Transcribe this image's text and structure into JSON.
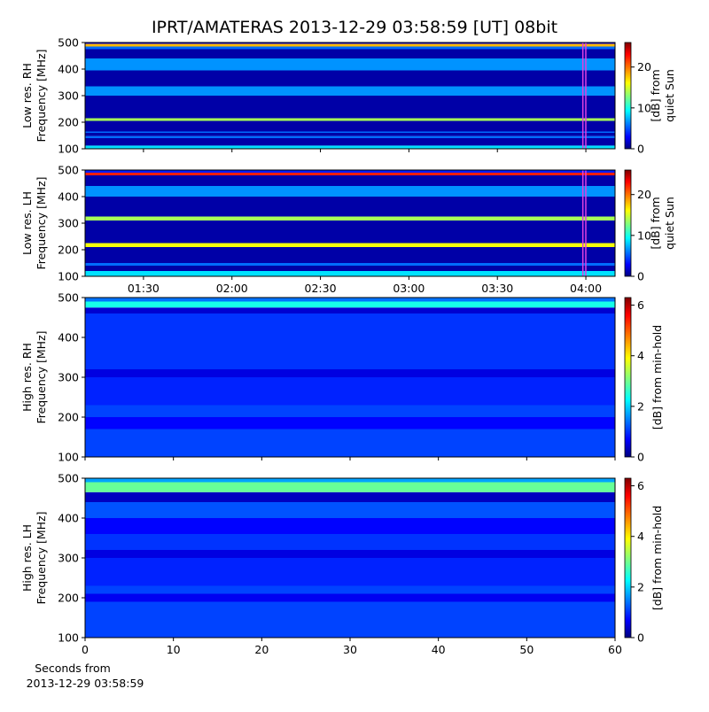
{
  "title": "IPRT/AMATERAS 2013-12-29 03:58:59 [UT]   08bit",
  "footnote": [
    "Seconds from",
    "2013-12-29 03:58:59"
  ],
  "chart_data": [
    {
      "type": "heatmap",
      "cmap": "jet",
      "ylabel": [
        "Low res. RH",
        "Frequency [MHz]"
      ],
      "xlim": [
        70.2,
        249.9
      ],
      "xticks": [
        90,
        120,
        150,
        180,
        210,
        240
      ],
      "xtick_labels": false,
      "ylim": [
        100,
        500
      ],
      "yticks": [
        100,
        200,
        300,
        400,
        500
      ],
      "y_edges": [
        100,
        112,
        140,
        148,
        160,
        165,
        205,
        215,
        300,
        335,
        395,
        440,
        475,
        485,
        495,
        500
      ],
      "values": [
        9,
        1,
        6,
        1,
        6,
        1,
        14,
        1,
        7,
        1,
        7,
        1,
        6,
        18,
        3
      ],
      "markers": [
        238.98,
        239.98
      ],
      "marker_color": "#e040e0",
      "colorbar": {
        "label": [
          "[dB] from",
          "quiet Sun"
        ],
        "lim": [
          0,
          26
        ],
        "ticks": [
          0,
          10,
          20
        ]
      }
    },
    {
      "type": "heatmap",
      "cmap": "jet",
      "ylabel": [
        "Low res. LH",
        "Frequency [MHz]"
      ],
      "xlim": [
        70.2,
        249.9
      ],
      "xticks": [
        {
          "value": 90,
          "label": "01:30"
        },
        {
          "value": 120,
          "label": "02:00"
        },
        {
          "value": 150,
          "label": "02:30"
        },
        {
          "value": 180,
          "label": "03:00"
        },
        {
          "value": 210,
          "label": "03:30"
        },
        {
          "value": 240,
          "label": "04:00"
        }
      ],
      "xtick_labels": true,
      "ylim": [
        100,
        500
      ],
      "yticks": [
        100,
        200,
        300,
        400,
        500
      ],
      "y_edges": [
        100,
        120,
        140,
        150,
        210,
        225,
        310,
        325,
        400,
        440,
        480,
        490,
        500
      ],
      "values": [
        9,
        1,
        6,
        1,
        16,
        1,
        14,
        1,
        7,
        1,
        22,
        4
      ],
      "markers": [
        238.98,
        239.98
      ],
      "marker_color": "#e040e0",
      "colorbar": {
        "label": [
          "[dB] from",
          "quiet Sun"
        ],
        "lim": [
          0,
          26
        ],
        "ticks": [
          0,
          10,
          20
        ]
      }
    },
    {
      "type": "heatmap",
      "cmap": "jet",
      "ylabel": [
        "High res. RH",
        "Frequency [MHz]"
      ],
      "xlim": [
        0,
        60
      ],
      "xticks": [
        0,
        10,
        20,
        30,
        40,
        50,
        60
      ],
      "xtick_labels": false,
      "ylim": [
        100,
        500
      ],
      "yticks": [
        100,
        200,
        300,
        400,
        500
      ],
      "y_edges": [
        100,
        170,
        200,
        230,
        300,
        320,
        460,
        475,
        490,
        500
      ],
      "values": [
        1.2,
        0.8,
        1.2,
        1,
        0.6,
        1.1,
        0.5,
        2.5,
        1.5
      ],
      "colorbar": {
        "label": [
          "[dB] from min-hold"
        ],
        "lim": [
          0,
          6.3
        ],
        "ticks": [
          0,
          2,
          4,
          6
        ]
      }
    },
    {
      "type": "heatmap",
      "cmap": "jet",
      "ylabel": [
        "High res. LH",
        "Frequency [MHz]"
      ],
      "xlim": [
        0,
        60
      ],
      "xticks": [
        0,
        10,
        20,
        30,
        40,
        50,
        60
      ],
      "xtick_labels": true,
      "ylim": [
        100,
        500
      ],
      "yticks": [
        100,
        200,
        300,
        400,
        500
      ],
      "y_edges": [
        100,
        190,
        210,
        230,
        300,
        320,
        360,
        400,
        440,
        465,
        490,
        500
      ],
      "values": [
        1.2,
        0.7,
        1.2,
        1,
        0.6,
        1.1,
        0.8,
        1.3,
        0.4,
        3,
        1.8
      ],
      "colorbar": {
        "label": [
          "[dB] from min-hold"
        ],
        "lim": [
          0,
          6.3
        ],
        "ticks": [
          0,
          2,
          4,
          6
        ]
      }
    }
  ]
}
